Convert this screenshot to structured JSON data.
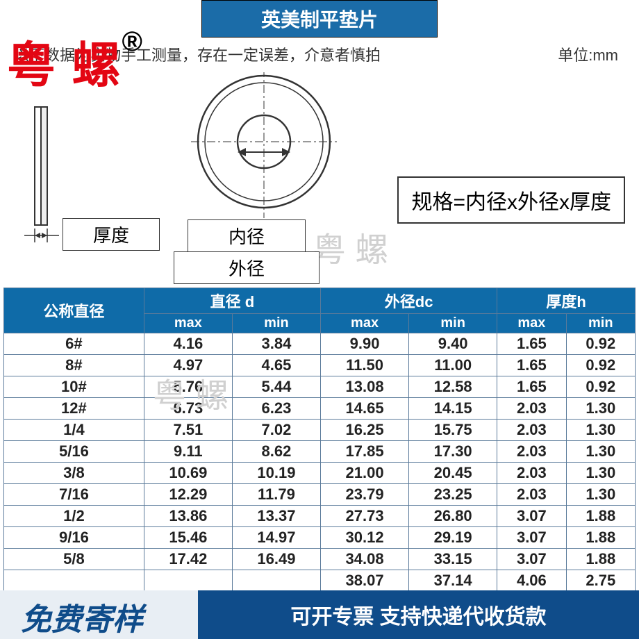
{
  "title": "英美制平垫片",
  "subtitle_left": "以下数据为实物手工测量，存在一定误差，介意者慎拍",
  "subtitle_right": "单位:mm",
  "watermark_red": "粤 螺",
  "reg_mark": "®",
  "watermark_gray": "粤 螺",
  "spec_formula": "规格=内径x外径x厚度",
  "labels": {
    "thickness": "厚度",
    "inner": "内径",
    "outer": "外径"
  },
  "diagram": {
    "outer_r": 95,
    "inner_r": 38,
    "stroke": "#333",
    "stroke_w": 2.5,
    "side_w": 18,
    "side_h": 170
  },
  "table": {
    "header_bg": "#0f6ba8",
    "header_fg": "#ffffff",
    "border": "#5a7a9a",
    "cols_top": [
      "公称直径",
      "直径 d",
      "外径dc",
      "厚度h"
    ],
    "cols_sub": [
      "max",
      "min",
      "max",
      "min",
      "max",
      "min"
    ],
    "rows": [
      [
        "6#",
        "4.16",
        "3.84",
        "9.90",
        "9.40",
        "1.65",
        "0.92"
      ],
      [
        "8#",
        "4.97",
        "4.65",
        "11.50",
        "11.00",
        "1.65",
        "0.92"
      ],
      [
        "10#",
        "5.76",
        "5.44",
        "13.08",
        "12.58",
        "1.65",
        "0.92"
      ],
      [
        "12#",
        "6.73",
        "6.23",
        "14.65",
        "14.15",
        "2.03",
        "1.30"
      ],
      [
        "1/4",
        "7.51",
        "7.02",
        "16.25",
        "15.75",
        "2.03",
        "1.30"
      ],
      [
        "5/16",
        "9.11",
        "8.62",
        "17.85",
        "17.30",
        "2.03",
        "1.30"
      ],
      [
        "3/8",
        "10.69",
        "10.19",
        "21.00",
        "20.45",
        "2.03",
        "1.30"
      ],
      [
        "7/16",
        "12.29",
        "11.79",
        "23.79",
        "23.25",
        "2.03",
        "1.30"
      ],
      [
        "1/2",
        "13.86",
        "13.37",
        "27.73",
        "26.80",
        "3.07",
        "1.88"
      ],
      [
        "9/16",
        "15.46",
        "14.97",
        "30.12",
        "29.19",
        "3.07",
        "1.88"
      ],
      [
        "5/8",
        "17.42",
        "16.49",
        "34.08",
        "33.15",
        "3.07",
        "1.88"
      ],
      [
        "",
        "",
        "",
        "38.07",
        "37.14",
        "4.06",
        "2.75"
      ]
    ]
  },
  "footer": {
    "left": "免费寄样",
    "right": "可开专票 支持快递代收货款",
    "left_bg": "#e8eef4",
    "left_fg": "#0f4c8a",
    "right_bg": "#0f4c8a",
    "right_fg": "#ffffff"
  }
}
